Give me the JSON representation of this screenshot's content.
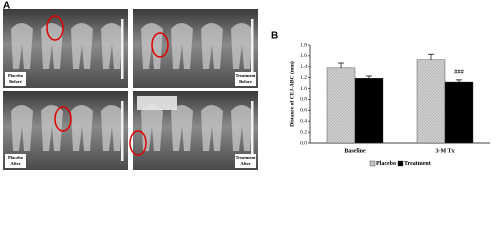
{
  "figure": {
    "panel_labels": [
      "A",
      "B"
    ],
    "images": [
      [
        "Placebo",
        "Before"
      ],
      [
        "Treatment",
        "Before"
      ],
      [
        "Placebo",
        "After"
      ],
      [
        "Treatment",
        "After"
      ]
    ]
  },
  "chart_data": {
    "type": "bar",
    "y_label": "Distance of CEJ-ABC (mm)",
    "categories": [
      "Baseline",
      "3-M Tx"
    ],
    "series": [
      {
        "name": "Placebo",
        "color": "#d0d0d0",
        "values": [
          1.38,
          1.53
        ],
        "errors": [
          0.09,
          0.1
        ]
      },
      {
        "name": "Treatment",
        "color": "#000000",
        "values": [
          1.19,
          1.12
        ],
        "errors": [
          0.04,
          0.04
        ]
      }
    ],
    "ylim": [
      0,
      1.8
    ],
    "yticks": [
      {
        "value": 0,
        "label": "0.0"
      },
      0.2,
      0.4,
      0.6,
      0.8,
      {
        "value": 1,
        "label": "1.0"
      },
      1.2,
      1.4,
      1.6,
      1.8
    ],
    "annotation": "###",
    "legend": "bottom"
  }
}
